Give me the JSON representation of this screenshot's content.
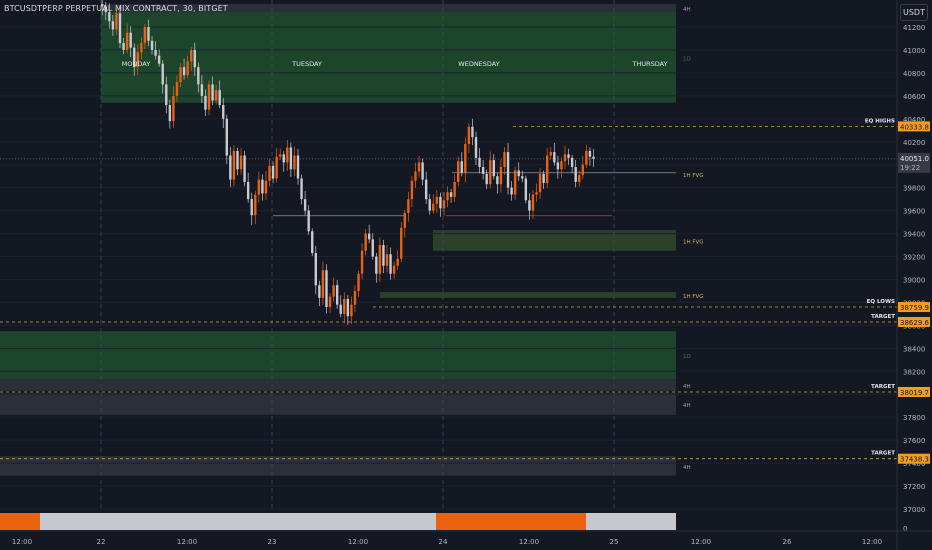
{
  "header": {
    "symbol_title": "BTCUSDTPERP PERPETUAL MIX CONTRACT, 30, BITGET"
  },
  "toolbar": {
    "currency_label": "USDT"
  },
  "colors": {
    "background": "#141823",
    "bull_candle": "#e8620f",
    "bear_candle": "#c9cbd1",
    "demand_zone": "#1d4d2e",
    "fvg_zone": "#2f4a2c",
    "gray_zone": "#2e323d",
    "target_line": "#e0a33a",
    "price_tag": "#f39c1e"
  },
  "chart_data": {
    "type": "candlestick",
    "title": "BTCUSDTPERP PERPETUAL MIX CONTRACT, 30, BITGET",
    "ylim": [
      36900,
      41400
    ],
    "y_ticks": [
      41200,
      41000,
      40800,
      40600,
      40400,
      40200,
      40000,
      39800,
      39600,
      39400,
      39200,
      39000,
      38800,
      38600,
      38400,
      38200,
      38000,
      37800,
      37600,
      37400,
      37200,
      37000
    ],
    "x_ticks": [
      {
        "label": "12:00",
        "x": 22
      },
      {
        "label": "22",
        "x": 101
      },
      {
        "label": "12:00",
        "x": 187
      },
      {
        "label": "23",
        "x": 272
      },
      {
        "label": "12:00",
        "x": 358
      },
      {
        "label": "24",
        "x": 443
      },
      {
        "label": "12:00",
        "x": 529
      },
      {
        "label": "25",
        "x": 614
      },
      {
        "label": "12:00",
        "x": 701
      },
      {
        "label": "26",
        "x": 787
      },
      {
        "label": "12:00",
        "x": 872
      }
    ],
    "day_labels": [
      {
        "label": "MONDAY",
        "x": 136
      },
      {
        "label": "TUESDAY",
        "x": 307
      },
      {
        "label": "WEDNESDAY",
        "x": 479
      },
      {
        "label": "THURSDAY",
        "x": 650
      }
    ],
    "session_dividers": [
      101,
      272,
      443,
      614
    ],
    "current_price": {
      "value": 40051.0,
      "label": "40051.0",
      "countdown": "19:22"
    },
    "zones": [
      {
        "label": "4H",
        "kind": "gray",
        "x_from": 101,
        "x_to": 676,
        "y_top": 41400,
        "y_bottom": 41330
      },
      {
        "label": "1D",
        "kind": "demand",
        "x_from": 101,
        "x_to": 676,
        "y_top": 41330,
        "y_bottom": 40540
      },
      {
        "label": "1H FVG",
        "kind": "fvg",
        "x_from": 433,
        "x_to": 676,
        "y_top": 39430,
        "y_bottom": 39250
      },
      {
        "label": "1H FVG",
        "kind": "fvg",
        "x_from": 380,
        "x_to": 676,
        "y_top": 38890,
        "y_bottom": 38840
      },
      {
        "label": "1D",
        "kind": "demand",
        "x_from": 0,
        "x_to": 676,
        "y_top": 38550,
        "y_bottom": 38130
      },
      {
        "label": "4H",
        "kind": "gray",
        "x_from": 0,
        "x_to": 676,
        "y_top": 38130,
        "y_bottom": 38030
      },
      {
        "label": "4H",
        "kind": "gray",
        "x_from": 0,
        "x_to": 676,
        "y_top": 38010,
        "y_bottom": 37820
      },
      {
        "label": "4H",
        "kind": "gray",
        "x_from": 0,
        "x_to": 676,
        "y_top": 37460,
        "y_bottom": 37290
      }
    ],
    "fvg_label_1": {
      "label": "1H FVG",
      "y": 39920
    },
    "levels": [
      {
        "label": "EQ HIGHS",
        "value": 40333.8,
        "tag": "40333.8",
        "x_from": 513
      },
      {
        "label": "EQ LOWS",
        "value": 38759.9,
        "tag": "38759.9",
        "x_from": 373
      },
      {
        "label": "TARGET",
        "value": 38629.6,
        "tag": "38629.6",
        "x_from": 0
      },
      {
        "label": "TARGET",
        "value": 38019.7,
        "tag": "38019.7",
        "x_from": 0
      },
      {
        "label": "TARGET",
        "value": 37438.3,
        "tag": "37438.3",
        "x_from": 0
      }
    ],
    "session_bar": [
      {
        "x_from": 0,
        "x_to": 40,
        "kind": "bull"
      },
      {
        "x_from": 40,
        "x_to": 436,
        "kind": "bear"
      },
      {
        "x_from": 436,
        "x_to": 586,
        "kind": "bull"
      },
      {
        "x_from": 586,
        "x_to": 676,
        "kind": "bear"
      }
    ],
    "volume_axis_label": "0",
    "candle_x_start": 101,
    "candle_x_step": 3.56,
    "price_points": [
      41400,
      41380,
      41330,
      41250,
      41180,
      41320,
      41060,
      41000,
      41150,
      41020,
      40850,
      40980,
      41060,
      41200,
      41080,
      41000,
      40950,
      40880,
      40700,
      40520,
      40380,
      40600,
      40720,
      40850,
      40780,
      40900,
      41000,
      40850,
      40700,
      40600,
      40480,
      40700,
      40560,
      40650,
      40520,
      40400,
      40080,
      39870,
      40120,
      39960,
      40080,
      39850,
      39700,
      39560,
      39740,
      39870,
      39750,
      39860,
      39990,
      39880,
      40070,
      40090,
      40020,
      40150,
      39960,
      40080,
      39880,
      39700,
      39600,
      39420,
      39230,
      38950,
      38840,
      39080,
      38760,
      38850,
      38950,
      38780,
      38700,
      38830,
      38680,
      38780,
      38900,
      39050,
      39250,
      39400,
      39350,
      39200,
      39050,
      39300,
      39120,
      39220,
      39050,
      39120,
      39180,
      39450,
      39580,
      39700,
      39860,
      39940,
      40020,
      39870,
      39700,
      39600,
      39660,
      39720,
      39620,
      39690,
      39760,
      39720,
      39850,
      40030,
      39930,
      40180,
      40330,
      40240,
      40060,
      39980,
      39920,
      39830,
      40040,
      39900,
      39830,
      39980,
      40110,
      39800,
      39740,
      39950,
      39900,
      39880,
      39690,
      39600,
      39740,
      39760,
      39920,
      39840,
      40080,
      40110,
      40020,
      39960,
      40030,
      40090,
      40060,
      39980,
      39850,
      39910,
      40000,
      40120,
      40070,
      40051
    ]
  }
}
